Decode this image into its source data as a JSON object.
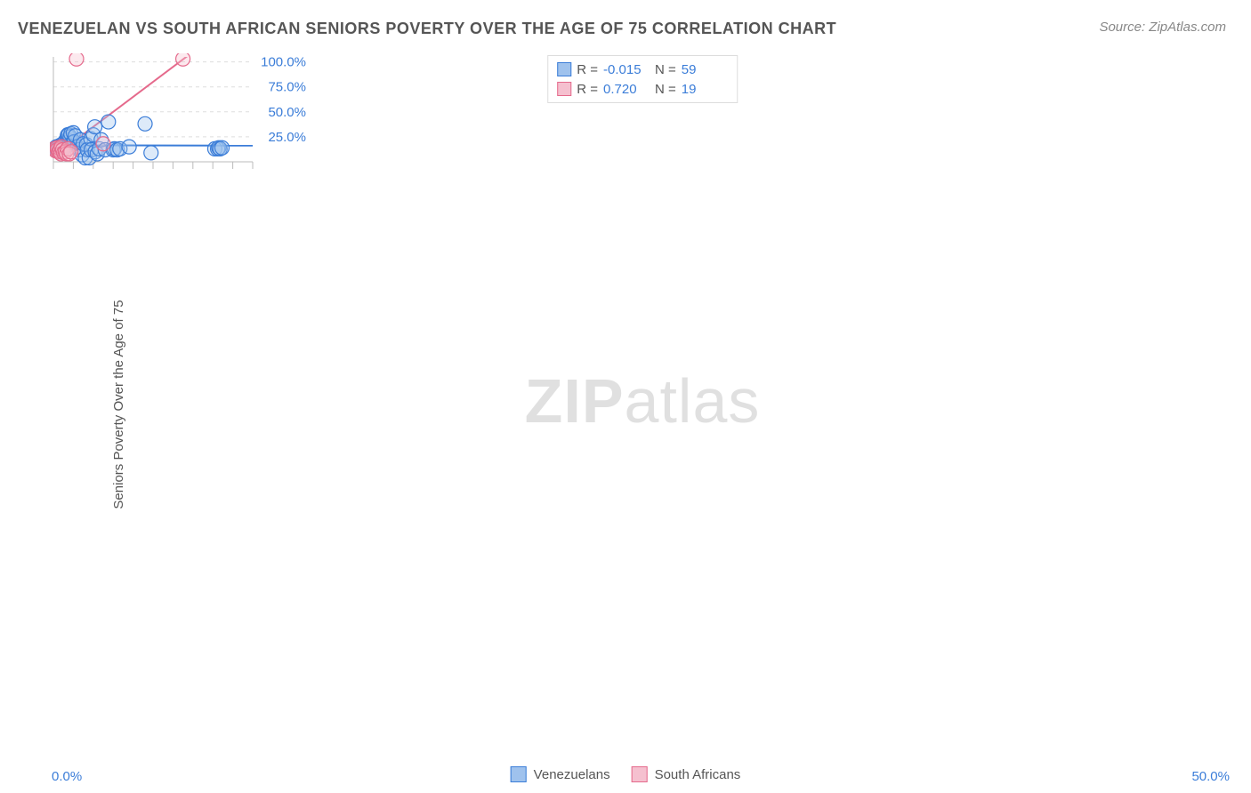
{
  "title": "VENEZUELAN VS SOUTH AFRICAN SENIORS POVERTY OVER THE AGE OF 75 CORRELATION CHART",
  "source": "Source: ZipAtlas.com",
  "ylabel": "Seniors Poverty Over the Age of 75",
  "watermark_bold": "ZIP",
  "watermark_light": "atlas",
  "chart": {
    "type": "scatter",
    "xlim": [
      0,
      50
    ],
    "ylim": [
      0,
      105
    ],
    "background_color": "#ffffff",
    "grid_color": "#dddddd",
    "grid_dash": "4,4",
    "y_ticks": [
      25,
      50,
      75,
      100
    ],
    "y_tick_labels": [
      "25.0%",
      "50.0%",
      "75.0%",
      "100.0%"
    ],
    "x_tick_positions": [
      0,
      5,
      10,
      15,
      20,
      25,
      30,
      35,
      40,
      45,
      50
    ],
    "x_min_label": "0.0%",
    "x_max_label": "50.0%",
    "axis_line_color": "#bbbbbb",
    "axis_label_color": "#3b7dd8",
    "axis_label_fontsize": 15,
    "marker_radius": 8,
    "marker_stroke_width": 1.2,
    "marker_fill_opacity": 0.35,
    "regression_line_width": 2
  },
  "series": [
    {
      "name": "Venezuelans",
      "color_stroke": "#3b7dd8",
      "color_fill": "#9fc2ed",
      "regression": {
        "y_at_xmin": 16.5,
        "y_at_xmax": 16.2
      },
      "points": [
        [
          0.5,
          14
        ],
        [
          0.7,
          12
        ],
        [
          0.8,
          15
        ],
        [
          1.0,
          11
        ],
        [
          1.2,
          13
        ],
        [
          1.4,
          10
        ],
        [
          1.5,
          16
        ],
        [
          1.6,
          14
        ],
        [
          1.8,
          12
        ],
        [
          2.0,
          17
        ],
        [
          2.2,
          15
        ],
        [
          2.4,
          13
        ],
        [
          2.5,
          18
        ],
        [
          2.7,
          19
        ],
        [
          2.8,
          14
        ],
        [
          3.0,
          21
        ],
        [
          3.2,
          16
        ],
        [
          3.4,
          22
        ],
        [
          3.5,
          26
        ],
        [
          3.6,
          27
        ],
        [
          3.8,
          27
        ],
        [
          4.0,
          17
        ],
        [
          4.2,
          25
        ],
        [
          4.4,
          28
        ],
        [
          4.8,
          19
        ],
        [
          5.0,
          29
        ],
        [
          5.2,
          20
        ],
        [
          5.5,
          26
        ],
        [
          6.0,
          15
        ],
        [
          6.5,
          12
        ],
        [
          6.8,
          22
        ],
        [
          7.2,
          7
        ],
        [
          7.5,
          18
        ],
        [
          8.0,
          4
        ],
        [
          8.3,
          17
        ],
        [
          8.5,
          12
        ],
        [
          9.0,
          4
        ],
        [
          9.4,
          23
        ],
        [
          9.5,
          12
        ],
        [
          10.0,
          27
        ],
        [
          10.4,
          35
        ],
        [
          10.5,
          10
        ],
        [
          11.0,
          8
        ],
        [
          11.5,
          13
        ],
        [
          12.0,
          22
        ],
        [
          13.0,
          12
        ],
        [
          13.8,
          40
        ],
        [
          15.0,
          12
        ],
        [
          15.3,
          13
        ],
        [
          16.0,
          12
        ],
        [
          16.7,
          13
        ],
        [
          19.0,
          15
        ],
        [
          23.0,
          38
        ],
        [
          24.5,
          9
        ],
        [
          40.5,
          13
        ],
        [
          41.2,
          13
        ],
        [
          41.5,
          14
        ],
        [
          41.8,
          13
        ],
        [
          42.3,
          14
        ]
      ]
    },
    {
      "name": "South Africans",
      "color_stroke": "#e56a8c",
      "color_fill": "#f5c0cf",
      "regression": {
        "y_at_xmin": 5,
        "y_at_xmax": 155
      },
      "points": [
        [
          0.3,
          13
        ],
        [
          0.6,
          11
        ],
        [
          0.9,
          14
        ],
        [
          1.0,
          12
        ],
        [
          1.3,
          10
        ],
        [
          1.5,
          11
        ],
        [
          1.7,
          13
        ],
        [
          1.9,
          8
        ],
        [
          2.0,
          15
        ],
        [
          2.3,
          12
        ],
        [
          2.6,
          9
        ],
        [
          3.0,
          10
        ],
        [
          3.3,
          8
        ],
        [
          3.6,
          13
        ],
        [
          4.0,
          8
        ],
        [
          4.4,
          10
        ],
        [
          5.8,
          103
        ],
        [
          12.5,
          18
        ],
        [
          32.5,
          103
        ]
      ]
    }
  ],
  "stats": [
    {
      "series_index": 0,
      "R": "-0.015",
      "N": "59"
    },
    {
      "series_index": 1,
      "R": "0.720",
      "N": "19"
    }
  ],
  "stats_labels": {
    "R": "R =",
    "N": "N ="
  },
  "legend": [
    {
      "label": "Venezuelans",
      "series_index": 0
    },
    {
      "label": "South Africans",
      "series_index": 1
    }
  ]
}
